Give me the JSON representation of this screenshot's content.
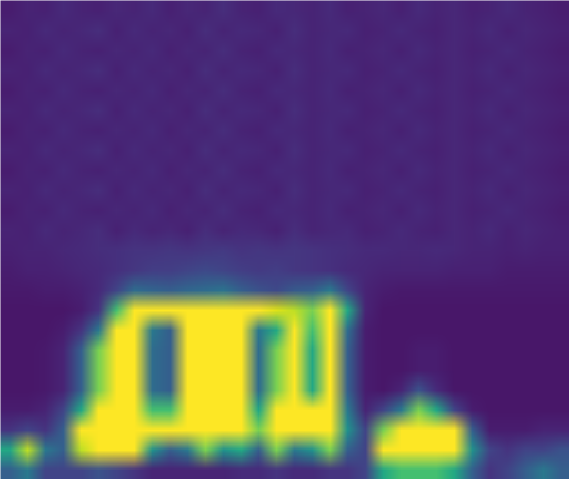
{
  "chart_data": {
    "type": "heatmap",
    "color": "viridis",
    "clim": [
      0,
      1
    ],
    "tick_labels": false,
    "cells": [
      [
        0.08,
        0.1,
        0.09,
        0.12,
        0.1,
        0.09,
        0.11,
        0.1,
        0.12,
        0.09,
        0.11,
        0.1,
        0.13,
        0.1,
        0.09,
        0.12,
        0.11,
        0.1,
        0.12,
        0.09,
        0.1,
        0.11,
        0.09,
        0.12,
        0.1,
        0.11,
        0.09,
        0.1,
        0.12,
        0.1,
        0.09,
        0.08
      ],
      [
        0.1,
        0.09,
        0.12,
        0.1,
        0.11,
        0.13,
        0.09,
        0.12,
        0.1,
        0.11,
        0.09,
        0.13,
        0.1,
        0.12,
        0.11,
        0.09,
        0.13,
        0.1,
        0.11,
        0.12,
        0.09,
        0.1,
        0.12,
        0.1,
        0.09,
        0.11,
        0.1,
        0.12,
        0.09,
        0.11,
        0.1,
        0.09
      ],
      [
        0.08,
        0.1,
        0.09,
        0.12,
        0.1,
        0.09,
        0.11,
        0.1,
        0.12,
        0.09,
        0.11,
        0.1,
        0.13,
        0.1,
        0.09,
        0.12,
        0.11,
        0.1,
        0.12,
        0.09,
        0.1,
        0.11,
        0.09,
        0.12,
        0.1,
        0.11,
        0.09,
        0.1,
        0.12,
        0.1,
        0.09,
        0.08
      ],
      [
        0.1,
        0.09,
        0.12,
        0.1,
        0.11,
        0.13,
        0.09,
        0.12,
        0.1,
        0.11,
        0.09,
        0.13,
        0.1,
        0.12,
        0.11,
        0.09,
        0.13,
        0.1,
        0.11,
        0.12,
        0.09,
        0.1,
        0.12,
        0.1,
        0.09,
        0.11,
        0.1,
        0.12,
        0.09,
        0.11,
        0.1,
        0.09
      ],
      [
        0.08,
        0.1,
        0.09,
        0.12,
        0.1,
        0.09,
        0.11,
        0.1,
        0.12,
        0.09,
        0.11,
        0.1,
        0.13,
        0.1,
        0.09,
        0.12,
        0.11,
        0.1,
        0.12,
        0.09,
        0.1,
        0.11,
        0.09,
        0.12,
        0.1,
        0.11,
        0.09,
        0.1,
        0.12,
        0.1,
        0.09,
        0.08
      ],
      [
        0.1,
        0.09,
        0.12,
        0.1,
        0.11,
        0.13,
        0.09,
        0.12,
        0.1,
        0.11,
        0.09,
        0.13,
        0.1,
        0.12,
        0.11,
        0.09,
        0.13,
        0.1,
        0.11,
        0.12,
        0.09,
        0.1,
        0.12,
        0.1,
        0.09,
        0.11,
        0.1,
        0.12,
        0.09,
        0.11,
        0.1,
        0.09
      ],
      [
        0.08,
        0.1,
        0.09,
        0.12,
        0.1,
        0.09,
        0.11,
        0.1,
        0.12,
        0.09,
        0.11,
        0.1,
        0.13,
        0.1,
        0.09,
        0.12,
        0.11,
        0.1,
        0.12,
        0.09,
        0.1,
        0.11,
        0.09,
        0.12,
        0.1,
        0.11,
        0.09,
        0.1,
        0.12,
        0.1,
        0.09,
        0.08
      ],
      [
        0.1,
        0.09,
        0.12,
        0.1,
        0.11,
        0.13,
        0.09,
        0.12,
        0.1,
        0.11,
        0.09,
        0.13,
        0.1,
        0.12,
        0.11,
        0.09,
        0.13,
        0.1,
        0.11,
        0.12,
        0.09,
        0.1,
        0.12,
        0.1,
        0.09,
        0.11,
        0.1,
        0.12,
        0.09,
        0.11,
        0.1,
        0.09
      ],
      [
        0.08,
        0.1,
        0.09,
        0.12,
        0.1,
        0.09,
        0.11,
        0.1,
        0.12,
        0.09,
        0.11,
        0.1,
        0.13,
        0.1,
        0.09,
        0.12,
        0.11,
        0.1,
        0.12,
        0.09,
        0.1,
        0.11,
        0.09,
        0.12,
        0.1,
        0.11,
        0.09,
        0.1,
        0.12,
        0.1,
        0.09,
        0.08
      ],
      [
        0.1,
        0.09,
        0.12,
        0.1,
        0.11,
        0.13,
        0.09,
        0.12,
        0.1,
        0.11,
        0.09,
        0.13,
        0.1,
        0.12,
        0.11,
        0.09,
        0.13,
        0.1,
        0.11,
        0.12,
        0.09,
        0.1,
        0.12,
        0.1,
        0.09,
        0.11,
        0.1,
        0.12,
        0.09,
        0.11,
        0.1,
        0.09
      ],
      [
        0.08,
        0.1,
        0.09,
        0.12,
        0.1,
        0.09,
        0.11,
        0.1,
        0.12,
        0.09,
        0.11,
        0.1,
        0.13,
        0.1,
        0.09,
        0.12,
        0.11,
        0.1,
        0.12,
        0.09,
        0.1,
        0.11,
        0.09,
        0.12,
        0.1,
        0.11,
        0.09,
        0.1,
        0.12,
        0.1,
        0.09,
        0.08
      ],
      [
        0.1,
        0.09,
        0.12,
        0.1,
        0.11,
        0.13,
        0.09,
        0.12,
        0.1,
        0.11,
        0.09,
        0.13,
        0.1,
        0.12,
        0.11,
        0.09,
        0.13,
        0.1,
        0.11,
        0.12,
        0.09,
        0.1,
        0.12,
        0.1,
        0.09,
        0.11,
        0.1,
        0.12,
        0.09,
        0.11,
        0.1,
        0.09
      ],
      [
        0.09,
        0.1,
        0.1,
        0.11,
        0.12,
        0.13,
        0.14,
        0.15,
        0.15,
        0.16,
        0.15,
        0.16,
        0.17,
        0.15,
        0.16,
        0.15,
        0.16,
        0.15,
        0.14,
        0.13,
        0.12,
        0.12,
        0.11,
        0.11,
        0.12,
        0.11,
        0.1,
        0.1,
        0.09,
        0.1,
        0.09,
        0.09
      ],
      [
        0.08,
        0.09,
        0.09,
        0.1,
        0.11,
        0.12,
        0.14,
        0.16,
        0.18,
        0.18,
        0.2,
        0.22,
        0.2,
        0.18,
        0.17,
        0.18,
        0.16,
        0.15,
        0.14,
        0.12,
        0.11,
        0.1,
        0.1,
        0.1,
        0.1,
        0.09,
        0.09,
        0.09,
        0.08,
        0.08,
        0.08,
        0.08
      ],
      [
        0.07,
        0.07,
        0.08,
        0.08,
        0.09,
        0.12,
        0.2,
        0.35,
        0.32,
        0.3,
        0.33,
        0.35,
        0.38,
        0.3,
        0.25,
        0.22,
        0.28,
        0.3,
        0.4,
        0.2,
        0.1,
        0.08,
        0.07,
        0.07,
        0.07,
        0.07,
        0.07,
        0.07,
        0.07,
        0.07,
        0.07,
        0.07
      ],
      [
        0.06,
        0.06,
        0.06,
        0.06,
        0.08,
        0.15,
        0.7,
        1,
        1,
        1,
        1,
        1,
        1,
        1,
        1,
        0.95,
        0.9,
        0.8,
        1,
        0.6,
        0.1,
        0.06,
        0.06,
        0.06,
        0.06,
        0.06,
        0.06,
        0.06,
        0.06,
        0.06,
        0.06,
        0.06
      ],
      [
        0.06,
        0.06,
        0.06,
        0.08,
        0.15,
        0.4,
        1,
        1,
        0.4,
        0.3,
        1,
        1,
        1,
        1,
        0.4,
        0.6,
        1,
        0.7,
        1,
        0.35,
        0.08,
        0.06,
        0.06,
        0.06,
        0.06,
        0.06,
        0.06,
        0.06,
        0.06,
        0.06,
        0.06,
        0.06
      ],
      [
        0.06,
        0.06,
        0.07,
        0.1,
        0.3,
        0.8,
        1,
        1,
        0.35,
        0.3,
        1,
        1,
        1,
        1,
        0.35,
        0.8,
        1,
        0.6,
        1,
        0.3,
        0.08,
        0.06,
        0.06,
        0.08,
        0.08,
        0.06,
        0.06,
        0.06,
        0.06,
        0.06,
        0.06,
        0.06
      ],
      [
        0.06,
        0.06,
        0.07,
        0.1,
        0.3,
        0.8,
        1,
        1,
        0.35,
        0.3,
        1,
        1,
        1,
        1,
        0.35,
        0.8,
        1,
        0.6,
        1,
        0.3,
        0.08,
        0.06,
        0.06,
        0.08,
        0.08,
        0.06,
        0.06,
        0.06,
        0.06,
        0.06,
        0.06,
        0.06
      ],
      [
        0.06,
        0.06,
        0.07,
        0.1,
        0.3,
        0.8,
        1,
        1,
        0.35,
        0.3,
        1,
        1,
        1,
        1,
        0.35,
        0.8,
        1,
        0.6,
        1,
        0.3,
        0.08,
        0.06,
        0.1,
        0.25,
        0.12,
        0.06,
        0.06,
        0.06,
        0.06,
        0.06,
        0.06,
        0.06
      ],
      [
        0.08,
        0.08,
        0.1,
        0.2,
        0.6,
        1,
        1,
        1,
        0.7,
        0.7,
        1,
        1,
        1,
        1,
        0.6,
        1,
        1,
        1,
        1,
        0.4,
        0.1,
        0.2,
        0.4,
        0.8,
        0.6,
        0.2,
        0.08,
        0.06,
        0.06,
        0.06,
        0.06,
        0.06
      ],
      [
        0.15,
        0.2,
        0.15,
        0.3,
        1,
        1,
        1,
        1,
        1,
        1,
        1,
        1,
        1,
        1,
        0.8,
        1,
        1,
        1,
        1,
        0.5,
        0.2,
        0.8,
        1,
        1,
        1,
        1,
        0.3,
        0.08,
        0.08,
        0.08,
        0.1,
        0.1
      ],
      [
        0.6,
        0.9,
        0.4,
        0.3,
        0.9,
        1,
        1,
        1,
        0.5,
        0.3,
        0.4,
        0.8,
        0.5,
        0.6,
        0.3,
        0.8,
        0.4,
        0.5,
        0.8,
        0.3,
        0.2,
        1,
        1,
        1,
        1,
        1,
        0.5,
        0.2,
        0.15,
        0.2,
        0.2,
        0.25
      ],
      [
        0.3,
        0.4,
        0.2,
        0.2,
        0.2,
        0.25,
        0.2,
        0.15,
        0.1,
        0.1,
        0.1,
        0.1,
        0.1,
        0.12,
        0.12,
        0.15,
        0.12,
        0.12,
        0.15,
        0.15,
        0.2,
        0.6,
        0.7,
        0.7,
        0.7,
        0.6,
        0.3,
        0.15,
        0.2,
        0.3,
        0.4,
        0.3
      ]
    ]
  }
}
